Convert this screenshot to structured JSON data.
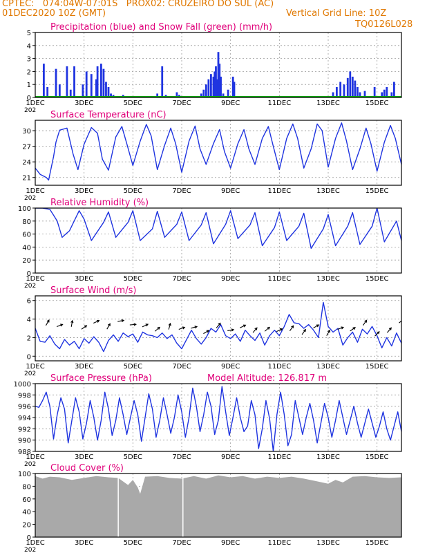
{
  "header": {
    "line1": "CPTEC:   074:04W-07:01S   PROX02: CRUZEIRO DO SUL (AC)",
    "line2_left": "01DEC2020 10Z (GMT)",
    "line2_right": "Vertical Grid Line: 10Z",
    "line3_right": "TQ0126L028",
    "year_fragment": "202",
    "model_altitude": "Model Altitude: 126.817  m"
  },
  "colors": {
    "header": "#e07800",
    "title": "#e0007a",
    "series": "#1f34e0",
    "snow": "#00a000",
    "cloud": "#a9a9a9",
    "grid": "#999999"
  },
  "x_axis": {
    "tick_labels": [
      "1DEC",
      "3DEC",
      "5DEC",
      "7DEC",
      "9DEC",
      "11DEC",
      "13DEC",
      "15DEC"
    ],
    "tick_days": [
      0,
      2,
      4,
      6,
      8,
      10,
      12,
      14
    ],
    "days_span": 15.0
  },
  "chart_data": [
    {
      "id": "precip",
      "type": "bar",
      "title": "Precipitation (blue) and Snow Fall (green) (mm/h)",
      "ylim": [
        0,
        5
      ],
      "yticks": [
        0,
        1,
        2,
        3,
        4,
        5
      ],
      "series": [
        {
          "name": "Precipitation",
          "color": "#1f34e0",
          "x": [
            0.35,
            0.5,
            0.85,
            1.0,
            1.3,
            1.45,
            1.6,
            1.95,
            2.1,
            2.3,
            2.5,
            2.55,
            2.7,
            2.8,
            2.9,
            3.0,
            3.1,
            3.2,
            3.3,
            3.4,
            3.6,
            5.0,
            5.1,
            5.2,
            5.35,
            5.6,
            5.7,
            5.8,
            5.9,
            6.0,
            6.4,
            6.5,
            6.8,
            6.9,
            7.0,
            7.1,
            7.2,
            7.3,
            7.35,
            7.4,
            7.45,
            7.5,
            7.55,
            7.6,
            7.7,
            7.9,
            8.1,
            8.15,
            10.5,
            12.2,
            12.35,
            12.5,
            12.65,
            12.8,
            12.9,
            13.0,
            13.1,
            13.2,
            13.3,
            13.5,
            13.9,
            14.2,
            14.3,
            14.4,
            14.6,
            14.7
          ],
          "values": [
            2.6,
            0.8,
            2.2,
            1.0,
            2.4,
            0.6,
            2.4,
            1.0,
            2.0,
            1.8,
            1.4,
            2.4,
            2.6,
            2.2,
            1.2,
            0.8,
            0.3,
            0.2,
            0.1,
            0.1,
            0.2,
            0.3,
            0.1,
            2.4,
            0.2,
            0.1,
            0.1,
            0.4,
            0.2,
            0.1,
            0.1,
            0.1,
            0.3,
            0.6,
            1.0,
            1.4,
            1.8,
            1.6,
            2.0,
            2.4,
            1.4,
            3.5,
            2.6,
            1.6,
            0.3,
            0.6,
            1.6,
            1.2,
            0.1,
            0.4,
            0.8,
            1.2,
            1.0,
            1.5,
            2.0,
            1.6,
            1.3,
            0.8,
            0.4,
            0.5,
            0.8,
            0.4,
            0.6,
            0.8,
            0.4,
            1.2
          ]
        },
        {
          "name": "Snow Fall",
          "color": "#00a000",
          "values": [
            0
          ]
        }
      ]
    },
    {
      "id": "temperature",
      "type": "line",
      "title": "Surface Temperature (nC)",
      "ylim": [
        19.5,
        32.0
      ],
      "yticks": [
        21,
        24,
        27,
        30
      ],
      "x": [
        0,
        0.2,
        0.45,
        0.55,
        0.75,
        0.85,
        1.0,
        1.3,
        1.55,
        1.75,
        2.0,
        2.3,
        2.55,
        2.75,
        3.0,
        3.3,
        3.55,
        3.75,
        4.0,
        4.3,
        4.55,
        4.75,
        5.0,
        5.3,
        5.55,
        5.75,
        6.0,
        6.3,
        6.55,
        6.75,
        7.0,
        7.3,
        7.55,
        7.75,
        8.0,
        8.3,
        8.55,
        8.75,
        9.0,
        9.3,
        9.55,
        9.75,
        10.0,
        10.3,
        10.55,
        10.75,
        11.0,
        11.3,
        11.55,
        11.75,
        12.0,
        12.3,
        12.55,
        12.75,
        13.0,
        13.3,
        13.55,
        13.75,
        14.0,
        14.3,
        14.55,
        14.75,
        15.0
      ],
      "y": [
        22.8,
        21.6,
        21.0,
        20.5,
        25.0,
        27.8,
        30.1,
        30.5,
        25.5,
        22.5,
        27.4,
        30.6,
        29.5,
        24.5,
        22.4,
        28.8,
        30.8,
        27.5,
        23.3,
        28.0,
        31.2,
        29.0,
        22.5,
        27.2,
        30.5,
        27.5,
        22.0,
        28.0,
        30.9,
        26.5,
        23.5,
        27.5,
        30.2,
        26.0,
        22.8,
        27.5,
        30.2,
        26.5,
        23.5,
        28.5,
        30.8,
        27.0,
        22.5,
        28.5,
        31.3,
        28.5,
        22.8,
        26.5,
        31.3,
        30.0,
        23.0,
        28.5,
        31.5,
        28.0,
        22.5,
        26.5,
        30.5,
        27.5,
        22.2,
        27.8,
        31.0,
        28.5,
        23.5
      ]
    },
    {
      "id": "humidity",
      "type": "line",
      "title": "Relative Humidity (%)",
      "ylim": [
        0,
        100
      ],
      "yticks": [
        0,
        20,
        40,
        60,
        80,
        100
      ],
      "x": [
        0,
        0.3,
        0.6,
        0.9,
        1.1,
        1.4,
        1.8,
        2.0,
        2.3,
        2.8,
        3.0,
        3.3,
        3.8,
        4.0,
        4.3,
        4.8,
        5.0,
        5.3,
        5.8,
        6.0,
        6.3,
        6.8,
        7.0,
        7.3,
        7.8,
        8.0,
        8.3,
        8.8,
        9.0,
        9.3,
        9.8,
        10.0,
        10.3,
        10.8,
        11.0,
        11.3,
        11.8,
        12.0,
        12.3,
        12.8,
        13.0,
        13.3,
        13.8,
        14.0,
        14.3,
        14.8,
        15.0
      ],
      "y": [
        100,
        100,
        98,
        80,
        55,
        65,
        96,
        83,
        50,
        78,
        94,
        55,
        78,
        96,
        50,
        68,
        95,
        55,
        75,
        94,
        50,
        74,
        93,
        45,
        75,
        96,
        53,
        74,
        93,
        42,
        70,
        94,
        50,
        72,
        92,
        38,
        68,
        90,
        42,
        72,
        93,
        44,
        72,
        100,
        48,
        80,
        50
      ]
    },
    {
      "id": "wind",
      "type": "line",
      "title": "Surface Wind (m/s)",
      "ylim": [
        -0.5,
        6.5
      ],
      "yticks": [
        0,
        2,
        4,
        6
      ],
      "x": [
        0,
        0.2,
        0.4,
        0.6,
        0.8,
        1.0,
        1.2,
        1.4,
        1.6,
        1.8,
        2.0,
        2.2,
        2.4,
        2.6,
        2.8,
        3.0,
        3.2,
        3.4,
        3.6,
        3.8,
        4.0,
        4.2,
        4.4,
        4.6,
        4.8,
        5.0,
        5.2,
        5.4,
        5.6,
        5.8,
        6.0,
        6.2,
        6.4,
        6.6,
        6.8,
        7.0,
        7.2,
        7.4,
        7.6,
        7.8,
        8.0,
        8.2,
        8.4,
        8.6,
        8.8,
        9.0,
        9.2,
        9.4,
        9.6,
        9.8,
        10.0,
        10.2,
        10.4,
        10.6,
        10.8,
        11.0,
        11.2,
        11.4,
        11.6,
        11.8,
        12.0,
        12.2,
        12.4,
        12.6,
        12.8,
        13.0,
        13.2,
        13.4,
        13.6,
        13.8,
        14.0,
        14.2,
        14.4,
        14.6,
        14.8,
        15.0
      ],
      "y": [
        3.0,
        1.6,
        1.5,
        2.2,
        1.3,
        0.8,
        1.8,
        1.2,
        1.6,
        0.8,
        1.9,
        1.4,
        2.1,
        1.5,
        0.5,
        1.7,
        2.3,
        1.6,
        2.5,
        2.1,
        2.4,
        1.5,
        2.6,
        2.3,
        2.2,
        2.0,
        2.5,
        1.9,
        2.3,
        1.4,
        0.8,
        1.8,
        2.8,
        1.9,
        1.3,
        2.0,
        3.0,
        2.6,
        3.4,
        2.2,
        1.9,
        2.4,
        1.6,
        2.8,
        2.2,
        1.7,
        2.5,
        1.2,
        2.2,
        2.8,
        2.2,
        3.2,
        4.5,
        3.6,
        3.5,
        3.0,
        3.4,
        2.8,
        2.0,
        5.8,
        3.2,
        2.6,
        3.0,
        1.2,
        2.0,
        2.6,
        1.5,
        2.9,
        2.4,
        3.2,
        2.2,
        0.9,
        2.0,
        1.1,
        2.5,
        1.4
      ],
      "arrow_days": [
        0.5,
        1.0,
        1.5,
        2.0,
        2.5,
        3.0,
        3.5,
        4.0,
        4.5,
        5.0,
        5.5,
        6.0,
        6.5,
        7.0,
        7.5,
        8.0,
        8.5,
        9.0,
        9.5,
        10.0,
        10.5,
        11.0,
        11.5,
        12.0,
        12.5,
        13.0,
        13.5,
        14.0,
        14.5,
        15.0
      ],
      "arrow_levels": [
        3.6,
        3.3,
        3.5,
        3.1,
        3.7,
        3.2,
        3.8,
        3.4,
        3.3,
        2.9,
        3.2,
        3.0,
        3.1,
        2.6,
        3.3,
        2.8,
        3.2,
        2.8,
        2.9,
        2.8,
        3.0,
        2.6,
        3.2,
        2.5,
        3.0,
        2.9,
        3.6,
        2.4,
        2.8,
        3.8
      ],
      "arrow_directions_deg": [
        60,
        20,
        80,
        35,
        25,
        60,
        10,
        5,
        25,
        40,
        75,
        20,
        15,
        30,
        50,
        10,
        25,
        50,
        40,
        25,
        55,
        55,
        30,
        60,
        20,
        35,
        55,
        45,
        50,
        40
      ]
    },
    {
      "id": "pressure",
      "type": "line",
      "title": "Surface Pressure (hPa)",
      "ylim": [
        988,
        1000
      ],
      "yticks": [
        988,
        990,
        992,
        994,
        996,
        998,
        1000
      ],
      "x": [
        0,
        0.15,
        0.3,
        0.45,
        0.6,
        0.75,
        0.9,
        1.05,
        1.2,
        1.35,
        1.5,
        1.65,
        1.8,
        1.95,
        2.1,
        2.25,
        2.4,
        2.55,
        2.7,
        2.85,
        3.0,
        3.15,
        3.3,
        3.45,
        3.6,
        3.75,
        3.9,
        4.05,
        4.2,
        4.35,
        4.5,
        4.65,
        4.8,
        4.95,
        5.1,
        5.25,
        5.4,
        5.55,
        5.7,
        5.85,
        6.0,
        6.15,
        6.3,
        6.45,
        6.6,
        6.75,
        6.9,
        7.05,
        7.2,
        7.35,
        7.5,
        7.65,
        7.8,
        7.95,
        8.1,
        8.25,
        8.4,
        8.55,
        8.7,
        8.85,
        9.0,
        9.15,
        9.3,
        9.45,
        9.6,
        9.75,
        9.9,
        10.05,
        10.2,
        10.35,
        10.5,
        10.65,
        10.8,
        10.95,
        11.1,
        11.25,
        11.4,
        11.55,
        11.7,
        11.85,
        12.0,
        12.15,
        12.3,
        12.45,
        12.6,
        12.75,
        12.9,
        13.05,
        13.2,
        13.35,
        13.5,
        13.65,
        13.8,
        13.95,
        14.1,
        14.25,
        14.4,
        14.55,
        14.7,
        14.85,
        15.0
      ],
      "y": [
        996.0,
        995.8,
        997.0,
        998.5,
        996.0,
        990.2,
        994.5,
        997.5,
        995.5,
        989.5,
        993.5,
        997.5,
        995.0,
        990.2,
        993.0,
        997.0,
        994.0,
        990.0,
        993.5,
        998.5,
        995.5,
        990.8,
        993.5,
        997.5,
        994.5,
        991.0,
        994.0,
        997.0,
        994.5,
        989.8,
        994.0,
        998.2,
        995.5,
        990.5,
        993.5,
        997.5,
        994.5,
        991.2,
        994.0,
        998.0,
        995.0,
        990.5,
        994.0,
        999.2,
        996.0,
        991.5,
        994.5,
        998.5,
        996.0,
        991.0,
        993.5,
        999.5,
        995.0,
        990.8,
        994.0,
        997.5,
        994.0,
        991.5,
        992.5,
        997.0,
        994.5,
        988.5,
        992.0,
        997.0,
        993.8,
        988.0,
        994.5,
        998.5,
        994.5,
        989.0,
        991.0,
        997.0,
        994.0,
        991.0,
        994.0,
        996.5,
        993.5,
        989.5,
        993.0,
        996.5,
        994.0,
        990.5,
        993.5,
        997.0,
        994.0,
        991.0,
        993.5,
        996.0,
        993.0,
        990.5,
        993.0,
        995.5,
        993.0,
        990.5,
        992.5,
        995.0,
        992.0,
        990.0,
        992.5,
        995.0,
        991.5
      ]
    },
    {
      "id": "cloud",
      "type": "area",
      "title": "Cloud Cover (%)",
      "ylim": [
        0,
        100
      ],
      "yticks": [
        0,
        20,
        40,
        60,
        80,
        100
      ],
      "x": [
        0,
        0.3,
        0.6,
        1.0,
        1.5,
        2.0,
        2.5,
        3.0,
        3.4,
        3.8,
        4.0,
        4.2,
        4.3,
        4.5,
        5.0,
        5.5,
        6.0,
        6.5,
        7.0,
        7.5,
        8.0,
        8.5,
        9.0,
        9.5,
        10.0,
        10.5,
        11.0,
        11.5,
        12.0,
        12.3,
        12.6,
        13.0,
        13.5,
        14.0,
        14.5,
        15.0
      ],
      "y": [
        96,
        92,
        95,
        94,
        90,
        93,
        96,
        94,
        93,
        82,
        90,
        78,
        68,
        95,
        96,
        93,
        92,
        96,
        92,
        97,
        94,
        96,
        92,
        95,
        93,
        95,
        92,
        88,
        84,
        90,
        86,
        95,
        96,
        94,
        93,
        94
      ],
      "gaps": [
        3.4,
        6.05
      ]
    }
  ]
}
